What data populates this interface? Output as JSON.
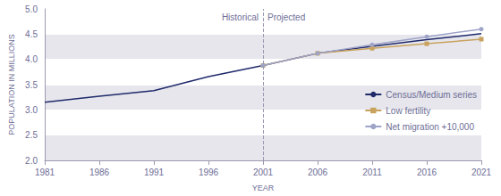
{
  "chart_data": {
    "type": "line",
    "x_label": "YEAR",
    "y_label": "POPULATION IN MILLIONS",
    "x": [
      1981,
      1986,
      1991,
      1996,
      2001,
      2006,
      2011,
      2016,
      2021
    ],
    "series": [
      {
        "name": "Census/Medium series",
        "color": "#1f2a6b",
        "marker": "none",
        "line_style": "solid",
        "values": [
          3.15,
          3.27,
          3.38,
          3.66,
          3.88,
          4.12,
          4.26,
          4.39,
          4.51
        ]
      },
      {
        "name": "Low fertility",
        "color": "#c9a25e",
        "marker": "square",
        "line_style": "solid",
        "values": [
          null,
          null,
          null,
          null,
          3.88,
          4.12,
          4.22,
          4.31,
          4.4
        ]
      },
      {
        "name": "Net migration +10,000",
        "color": "#9ea3c8",
        "marker": "circle",
        "line_style": "solid",
        "values": [
          null,
          null,
          null,
          null,
          3.88,
          4.12,
          4.29,
          4.45,
          4.6
        ]
      }
    ],
    "xlim": [
      1981,
      2021
    ],
    "xticks": [
      1981,
      1986,
      1991,
      1996,
      2001,
      2006,
      2011,
      2016,
      2021
    ],
    "ylim": [
      2.0,
      5.0
    ],
    "yticks": [
      {
        "value": 2.0,
        "label": "2.0"
      },
      {
        "value": 2.5,
        "label": "2.5"
      },
      {
        "value": 3.0,
        "label": "3.0"
      },
      {
        "value": 3.5,
        "label": "3.5"
      },
      {
        "value": 4.0,
        "label": "4.0"
      },
      {
        "value": 4.5,
        "label": "4.5"
      },
      {
        "value": 5.0,
        "label": "5.0"
      }
    ],
    "annotations": [
      {
        "text": "Historical",
        "x": 2001,
        "position": "left"
      },
      {
        "text": "Projected",
        "x": 2001,
        "position": "right"
      }
    ],
    "grid": true,
    "legend": "right"
  }
}
